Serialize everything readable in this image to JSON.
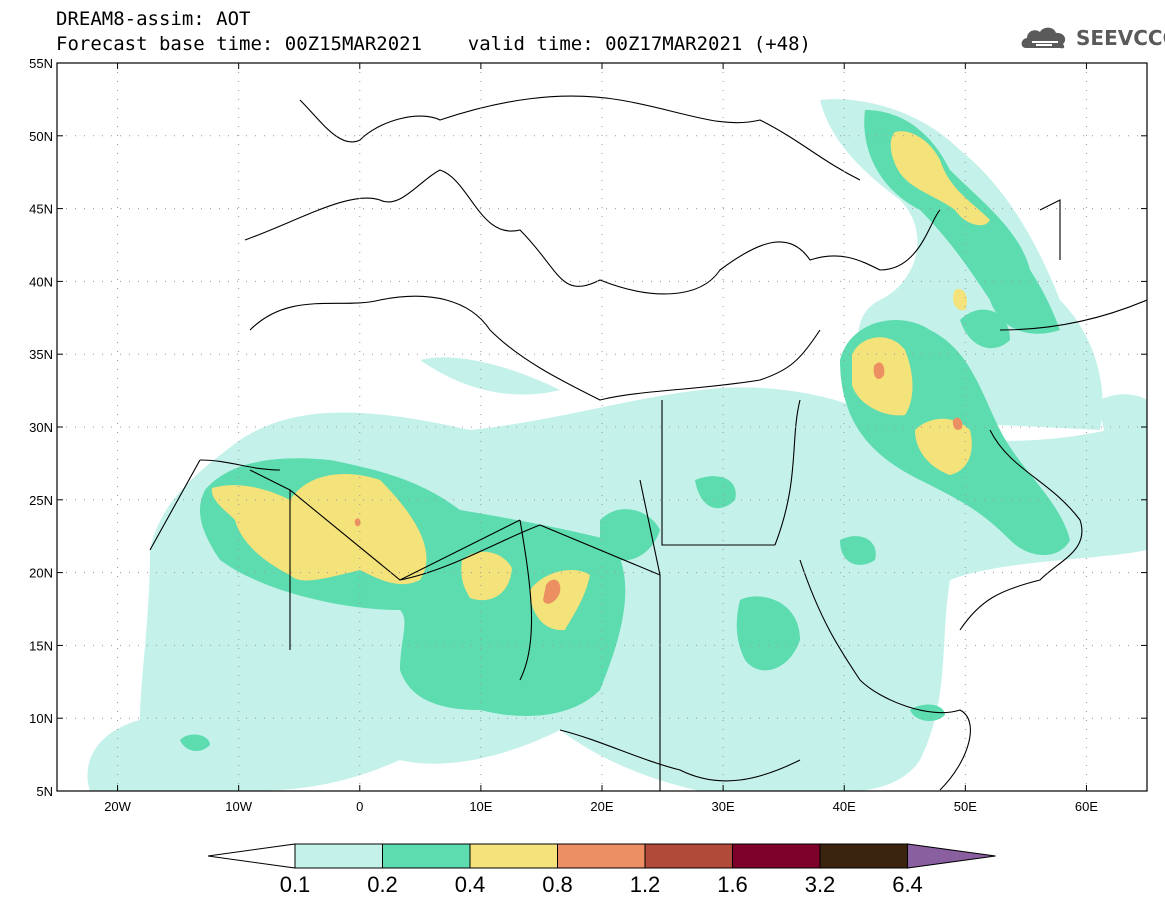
{
  "header": {
    "title_line1": "DREAM8-assim: AOT",
    "title_line2": "Forecast base time: 00Z15MAR2021    valid time: 00Z17MAR2021 (+48)"
  },
  "logo": {
    "text": "SEEVCCC",
    "icon": "cloud-logo-icon",
    "color": "#5a5a5a"
  },
  "map": {
    "lon_range": [
      -25,
      65
    ],
    "lat_range": [
      5,
      55
    ],
    "lat_ticks": [
      "55N",
      "50N",
      "45N",
      "40N",
      "35N",
      "30N",
      "25N",
      "20N",
      "15N",
      "10N",
      "5N"
    ],
    "lon_ticks": [
      "20W",
      "10W",
      "0",
      "10E",
      "20E",
      "30E",
      "40E",
      "50E",
      "60E"
    ]
  },
  "colorbar": {
    "labels": [
      "0.1",
      "0.2",
      "0.4",
      "0.8",
      "1.2",
      "1.6",
      "3.2",
      "6.4"
    ],
    "colors": [
      "#ffffff",
      "#c4f2ea",
      "#5ddcb0",
      "#f4e27a",
      "#ec8f62",
      "#b24a3a",
      "#7c0029",
      "#3a2410",
      "#8a5fa0"
    ]
  }
}
